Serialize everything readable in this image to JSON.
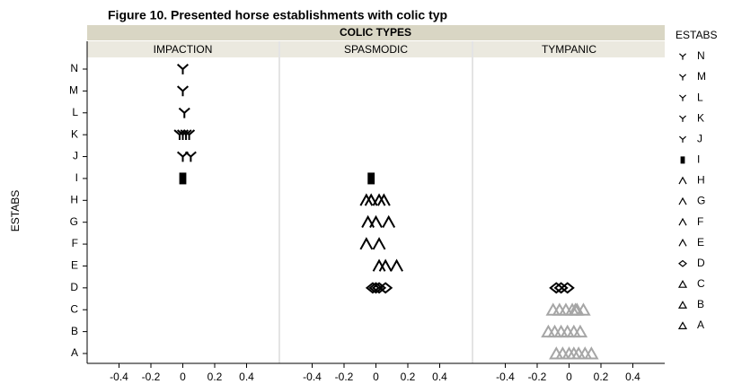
{
  "chart_data": {
    "type": "scatter",
    "title": "Figure 10. Presented horse establishments with colic typ",
    "column_header": "COLIC TYPES",
    "panels": [
      "IMPACTION",
      "SPASMODIC",
      "TYMPANIC"
    ],
    "y_label": "ESTABS",
    "legend_title": "ESTABS",
    "xlim": [
      -0.6,
      0.6
    ],
    "xticks": [
      -0.4,
      -0.2,
      0,
      0.2,
      0.4
    ],
    "series": [
      {
        "name": "A",
        "marker": "triangle",
        "color": "#a6a6a6",
        "x": [
          [],
          [],
          [
            -0.08,
            -0.04,
            0,
            0.03,
            0.06,
            0.1,
            0.14
          ]
        ]
      },
      {
        "name": "B",
        "marker": "triangle",
        "color": "#a6a6a6",
        "x": [
          [],
          [],
          [
            -0.13,
            -0.09,
            -0.05,
            -0.01,
            0.03,
            0.07
          ]
        ]
      },
      {
        "name": "C",
        "marker": "triangle",
        "color": "#a6a6a6",
        "x": [
          [],
          [],
          [
            -0.1,
            -0.06,
            -0.02,
            0.02,
            0.04,
            0.05,
            0.09
          ]
        ]
      },
      {
        "name": "D",
        "marker": "diamond",
        "color": "#000000",
        "x": [
          [],
          [
            -0.02,
            0,
            0.02,
            0.06
          ],
          [
            -0.08,
            -0.05,
            -0.01
          ]
        ]
      },
      {
        "name": "E",
        "marker": "caret",
        "color": "#000000",
        "x": [
          [],
          [
            0.02,
            0.06,
            0.13
          ],
          []
        ]
      },
      {
        "name": "F",
        "marker": "caret",
        "color": "#000000",
        "x": [
          [],
          [
            -0.06,
            0.02
          ],
          []
        ]
      },
      {
        "name": "G",
        "marker": "caret",
        "color": "#000000",
        "x": [
          [],
          [
            -0.05,
            0,
            0.08
          ],
          []
        ]
      },
      {
        "name": "H",
        "marker": "caret",
        "color": "#000000",
        "x": [
          [],
          [
            -0.06,
            -0.03,
            0.02,
            0.05
          ],
          []
        ]
      },
      {
        "name": "I",
        "marker": "square",
        "color": "#000000",
        "x": [
          [
            0
          ],
          [
            -0.03
          ],
          []
        ]
      },
      {
        "name": "J",
        "marker": "y",
        "color": "#000000",
        "x": [
          [
            0,
            0.05
          ],
          [],
          []
        ]
      },
      {
        "name": "K",
        "marker": "y",
        "color": "#000000",
        "x": [
          [
            -0.02,
            0,
            0.02,
            0.04
          ],
          [],
          []
        ]
      },
      {
        "name": "L",
        "marker": "y",
        "color": "#000000",
        "x": [
          [
            0.01
          ],
          [],
          []
        ]
      },
      {
        "name": "M",
        "marker": "y",
        "color": "#000000",
        "x": [
          [
            0
          ],
          [],
          []
        ]
      },
      {
        "name": "N",
        "marker": "y",
        "color": "#000000",
        "x": [
          [
            0
          ],
          [],
          []
        ]
      }
    ]
  }
}
